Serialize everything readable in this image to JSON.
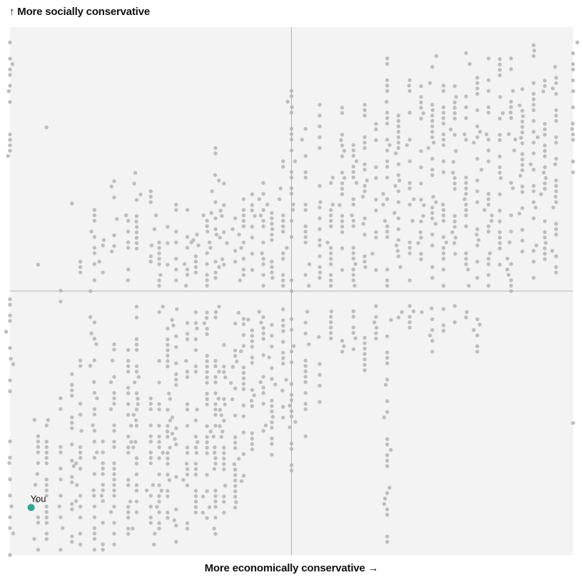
{
  "chart_data": {
    "type": "scatter",
    "ylabel": "↑ More socially conservative",
    "xlabel": "More economically conservative →",
    "xlim": [
      -1,
      1
    ],
    "ylim": [
      -1,
      1
    ],
    "grid": false,
    "quadrant_lines": {
      "x": 0,
      "y": 0
    },
    "you": {
      "label": "You",
      "x": -0.925,
      "y": -0.82
    },
    "colors": {
      "background": "#f3f3f3",
      "points": "#bdbdbd",
      "you": "#2ea88f",
      "axis_lines": "#b3b3b3"
    },
    "population": {
      "note_only_for_render": false,
      "columns": [
        {
          "x": -1.0,
          "ranges": [
            [
              -1.0,
              -0.55
            ],
            [
              -0.4,
              -0.02
            ],
            [
              0.45,
              0.95
            ]
          ]
        },
        {
          "x": -0.9,
          "ranges": [
            [
              -0.98,
              -0.48
            ],
            [
              -0.28,
              -0.22
            ],
            [
              0.1,
              0.12
            ]
          ]
        },
        {
          "x": -0.87,
          "ranges": [
            [
              -0.96,
              -0.48
            ],
            [
              0.32,
              0.35
            ],
            [
              0.62,
              0.65
            ]
          ]
        },
        {
          "x": -0.82,
          "ranges": [
            [
              -0.98,
              -0.38
            ],
            [
              -0.06,
              0.02
            ]
          ]
        },
        {
          "x": -0.78,
          "ranges": [
            [
              -0.95,
              -0.28
            ],
            [
              0.25,
              0.35
            ]
          ]
        },
        {
          "x": -0.75,
          "ranges": [
            [
              -0.96,
              -0.05
            ],
            [
              0.05,
              0.12
            ]
          ]
        },
        {
          "x": -0.7,
          "ranges": [
            [
              -0.98,
              -0.05
            ],
            [
              0.0,
              0.35
            ]
          ]
        },
        {
          "x": -0.67,
          "ranges": [
            [
              -0.98,
              -0.4
            ],
            [
              0.05,
              0.2
            ]
          ]
        },
        {
          "x": -0.63,
          "ranges": [
            [
              -0.96,
              -0.05
            ],
            [
              0.15,
              0.42
            ]
          ]
        },
        {
          "x": -0.58,
          "ranges": [
            [
              -0.92,
              -0.2
            ],
            [
              0.0,
              0.32
            ]
          ]
        },
        {
          "x": -0.55,
          "ranges": [
            [
              -0.92,
              -0.05
            ],
            [
              0.12,
              0.46
            ]
          ]
        },
        {
          "x": -0.5,
          "ranges": [
            [
              -0.96,
              -0.4
            ],
            [
              0.05,
              0.38
            ]
          ]
        },
        {
          "x": -0.47,
          "ranges": [
            [
              -0.92,
              -0.05
            ],
            [
              0.02,
              0.3
            ]
          ]
        },
        {
          "x": -0.44,
          "ranges": [
            [
              -0.88,
              -0.12
            ],
            [
              0.1,
              0.26
            ]
          ]
        },
        {
          "x": -0.41,
          "ranges": [
            [
              -0.95,
              -0.05
            ],
            [
              0.02,
              0.35
            ]
          ]
        },
        {
          "x": -0.37,
          "ranges": [
            [
              -0.9,
              -0.1
            ],
            [
              0.0,
              0.36
            ]
          ]
        },
        {
          "x": -0.34,
          "ranges": [
            [
              -0.9,
              -0.05
            ],
            [
              0.05,
              0.26
            ]
          ]
        },
        {
          "x": -0.3,
          "ranges": [
            [
              -0.86,
              -0.05
            ],
            [
              0.0,
              0.3
            ]
          ]
        },
        {
          "x": -0.27,
          "ranges": [
            [
              -0.92,
              -0.05
            ],
            [
              0.05,
              0.55
            ]
          ]
        },
        {
          "x": -0.24,
          "ranges": [
            [
              -0.86,
              -0.18
            ],
            [
              0.1,
              0.42
            ]
          ]
        },
        {
          "x": -0.2,
          "ranges": [
            [
              -0.82,
              -0.08
            ],
            [
              0.05,
              0.3
            ]
          ]
        },
        {
          "x": -0.17,
          "ranges": [
            [
              -0.72,
              -0.1
            ],
            [
              0.02,
              0.38
            ]
          ]
        },
        {
          "x": -0.14,
          "ranges": [
            [
              -0.6,
              -0.05
            ],
            [
              0.08,
              0.42
            ]
          ]
        },
        {
          "x": -0.1,
          "ranges": [
            [
              -0.55,
              -0.05
            ],
            [
              0.02,
              0.42
            ]
          ]
        },
        {
          "x": -0.07,
          "ranges": [
            [
              -0.62,
              -0.05
            ],
            [
              0.05,
              0.32
            ]
          ]
        },
        {
          "x": -0.03,
          "ranges": [
            [
              -0.5,
              -0.05
            ],
            [
              0.02,
              0.5
            ]
          ]
        },
        {
          "x": 0.0,
          "ranges": [
            [
              -0.68,
              -0.1
            ],
            [
              0.0,
              0.78
            ]
          ]
        },
        {
          "x": 0.05,
          "ranges": [
            [
              -0.55,
              -0.05
            ],
            [
              0.02,
              0.62
            ]
          ]
        },
        {
          "x": 0.1,
          "ranges": [
            [
              -0.42,
              -0.08
            ],
            [
              0.05,
              0.72
            ]
          ]
        },
        {
          "x": 0.14,
          "ranges": [
            [
              -0.2,
              -0.05
            ],
            [
              0.02,
              0.55
            ]
          ]
        },
        {
          "x": 0.18,
          "ranges": [
            [
              -0.25,
              -0.1
            ],
            [
              0.08,
              0.72
            ]
          ]
        },
        {
          "x": 0.22,
          "ranges": [
            [
              -0.22,
              -0.05
            ],
            [
              0.0,
              0.62
            ]
          ]
        },
        {
          "x": 0.26,
          "ranges": [
            [
              -0.3,
              -0.15
            ],
            [
              0.05,
              0.78
            ]
          ]
        },
        {
          "x": 0.3,
          "ranges": [
            [
              -0.18,
              -0.05
            ],
            [
              0.08,
              0.65
            ]
          ]
        },
        {
          "x": 0.34,
          "ranges": [
            [
              -0.95,
              -0.05
            ],
            [
              0.02,
              0.92
            ]
          ]
        },
        {
          "x": 0.38,
          "ranges": [
            [
              -0.1,
              -0.05
            ],
            [
              0.05,
              0.68
            ]
          ]
        },
        {
          "x": 0.42,
          "ranges": [
            [
              -0.2,
              -0.05
            ],
            [
              0.02,
              0.82
            ]
          ]
        },
        {
          "x": 0.46,
          "ranges": [
            [
              -0.08,
              -0.03
            ],
            [
              0.1,
              0.78
            ]
          ]
        },
        {
          "x": 0.5,
          "ranges": [
            [
              -0.25,
              -0.05
            ],
            [
              0.05,
              0.9
            ]
          ]
        },
        {
          "x": 0.54,
          "ranges": [
            [
              -0.15,
              -0.05
            ],
            [
              0.02,
              0.78
            ]
          ]
        },
        {
          "x": 0.58,
          "ranges": [
            [
              -0.2,
              -0.05
            ],
            [
              0.1,
              0.82
            ]
          ]
        },
        {
          "x": 0.62,
          "ranges": [
            [
              -0.1,
              -0.05
            ],
            [
              0.02,
              0.92
            ]
          ]
        },
        {
          "x": 0.66,
          "ranges": [
            [
              -0.25,
              -0.1
            ],
            [
              0.05,
              0.82
            ]
          ]
        },
        {
          "x": 0.7,
          "ranges": [
            [
              0.02,
              0.9
            ]
          ]
        },
        {
          "x": 0.74,
          "ranges": [
            [
              0.1,
              0.88
            ]
          ]
        },
        {
          "x": 0.78,
          "ranges": [
            [
              0.0,
              0.92
            ]
          ]
        },
        {
          "x": 0.82,
          "ranges": [
            [
              0.15,
              0.88
            ]
          ]
        },
        {
          "x": 0.86,
          "ranges": [
            [
              0.05,
              0.95
            ]
          ]
        },
        {
          "x": 0.9,
          "ranges": [
            [
              0.08,
              0.82
            ]
          ]
        },
        {
          "x": 0.94,
          "ranges": [
            [
              0.05,
              0.9
            ]
          ]
        },
        {
          "x": 1.0,
          "ranges": [
            [
              -0.5,
              -0.48
            ],
            [
              0.45,
              0.95
            ]
          ]
        }
      ]
    }
  }
}
